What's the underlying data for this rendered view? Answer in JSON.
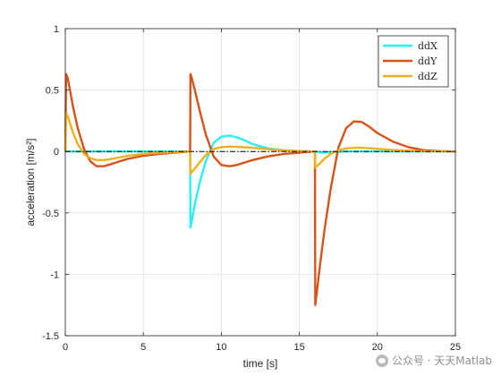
{
  "chart_data": {
    "type": "line",
    "xlabel": "time [s]",
    "ylabel": "acceleration [m/s²]",
    "xlim": [
      0,
      25
    ],
    "ylim": [
      -1.5,
      1
    ],
    "xticks": [
      0,
      5,
      10,
      15,
      20,
      25
    ],
    "yticks": [
      -1.5,
      -1,
      -0.5,
      0,
      0.5,
      1
    ],
    "xtick_labels": [
      "0",
      "5",
      "10",
      "15",
      "20",
      "25"
    ],
    "ytick_labels": [
      "-1.5",
      "-1",
      "-0.5",
      "0",
      "0.5",
      "1"
    ],
    "grid": true,
    "legend_position": "top-right",
    "zero_line": true,
    "series": [
      {
        "name": "ddX",
        "color": "#29f0f0",
        "x": [
          0,
          8,
          8.02,
          8.1,
          8.3,
          8.6,
          9.0,
          9.5,
          10.0,
          10.5,
          11.0,
          11.5,
          12.0,
          13.0,
          14.0,
          15.0,
          16.0,
          16.5,
          17.0,
          18.0,
          25.0
        ],
        "y": [
          0,
          0,
          -0.62,
          -0.57,
          -0.43,
          -0.26,
          -0.08,
          0.07,
          0.12,
          0.13,
          0.115,
          0.09,
          0.06,
          0.025,
          0.01,
          0.003,
          0,
          -0.01,
          -0.005,
          0,
          0
        ]
      },
      {
        "name": "ddY",
        "color": "#d95319",
        "x": [
          0,
          0.05,
          0.15,
          0.3,
          0.5,
          0.8,
          1.2,
          1.6,
          2.0,
          2.5,
          3.0,
          4.0,
          5.0,
          6.0,
          7.0,
          8.0,
          8.02,
          8.1,
          8.3,
          8.6,
          9.0,
          9.5,
          10.0,
          10.5,
          11.0,
          12.0,
          13.0,
          14.0,
          15.0,
          16.0,
          16.02,
          16.1,
          16.3,
          16.6,
          17.0,
          17.5,
          18.0,
          18.5,
          19.0,
          19.5,
          20.0,
          21.0,
          22.0,
          23.0,
          24.0,
          25.0
        ],
        "y": [
          0,
          0.63,
          0.6,
          0.5,
          0.36,
          0.19,
          0.02,
          -0.08,
          -0.12,
          -0.12,
          -0.1,
          -0.06,
          -0.035,
          -0.02,
          -0.01,
          0,
          0.63,
          0.6,
          0.5,
          0.34,
          0.14,
          -0.04,
          -0.11,
          -0.12,
          -0.11,
          -0.07,
          -0.04,
          -0.02,
          -0.01,
          0,
          -1.25,
          -1.17,
          -0.95,
          -0.65,
          -0.31,
          0.03,
          0.19,
          0.245,
          0.24,
          0.2,
          0.15,
          0.08,
          0.035,
          0.01,
          0.003,
          0
        ]
      },
      {
        "name": "ddZ",
        "color": "#edb120",
        "x": [
          0,
          0.05,
          0.15,
          0.3,
          0.5,
          0.8,
          1.2,
          1.6,
          2.0,
          2.5,
          3.0,
          4.0,
          5.0,
          6.0,
          7.0,
          8.0,
          8.02,
          8.1,
          8.3,
          8.6,
          9.0,
          9.5,
          10.0,
          10.5,
          11.0,
          12.0,
          13.0,
          14.0,
          15.0,
          16.0,
          16.02,
          16.1,
          16.3,
          16.6,
          17.0,
          17.5,
          18.0,
          18.5,
          19.0,
          20.0,
          21.0,
          22.0,
          23.0,
          25.0
        ],
        "y": [
          0,
          0.31,
          0.29,
          0.23,
          0.15,
          0.06,
          -0.02,
          -0.055,
          -0.07,
          -0.07,
          -0.06,
          -0.035,
          -0.02,
          -0.01,
          -0.005,
          0,
          -0.18,
          -0.17,
          -0.14,
          -0.09,
          -0.03,
          0.02,
          0.035,
          0.04,
          0.038,
          0.03,
          0.018,
          0.009,
          0.004,
          0,
          -0.13,
          -0.12,
          -0.1,
          -0.06,
          -0.02,
          0.01,
          0.025,
          0.03,
          0.03,
          0.022,
          0.012,
          0.006,
          0.002,
          0
        ]
      }
    ]
  },
  "watermark": "公众号 · 天天Matlab"
}
